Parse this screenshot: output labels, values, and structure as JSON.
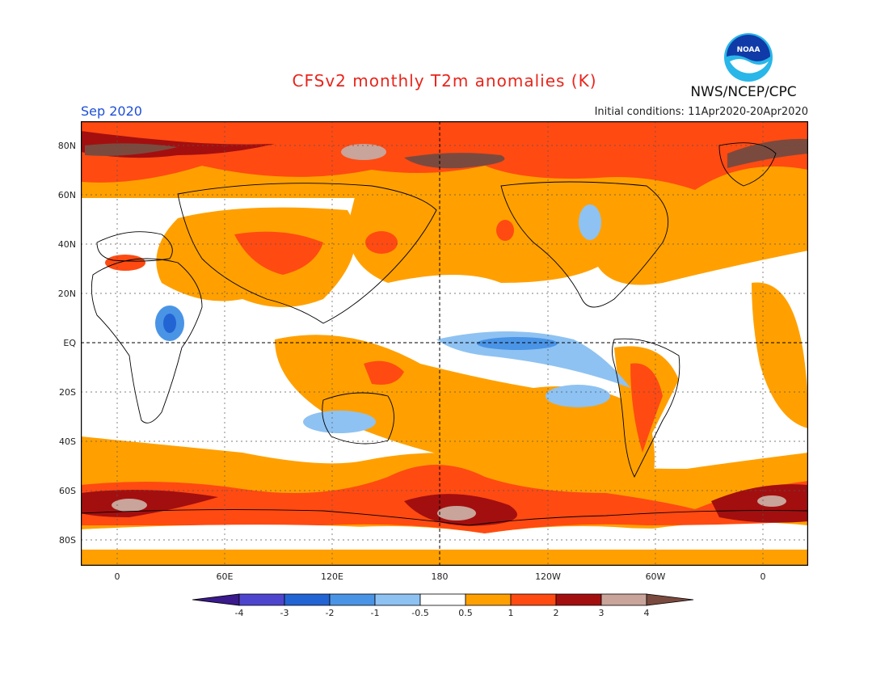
{
  "title": "CFSv2 monthly T2m anomalies (K)",
  "valid_month": "Sep 2020",
  "initial_conditions": "Initial conditions: 11Apr2020-20Apr2020",
  "agency": "NWS/NCEP/CPC",
  "logo_text": "NOAA",
  "colors": {
    "title": "#e8251c",
    "month": "#1d4fd6",
    "land_outline": "#000000"
  },
  "map": {
    "lat_ticks": [
      "80N",
      "60N",
      "40N",
      "20N",
      "EQ",
      "20S",
      "40S",
      "60S",
      "80S"
    ],
    "lon_ticks": [
      "0",
      "60E",
      "120E",
      "180",
      "120W",
      "60W",
      "0"
    ]
  },
  "legend": {
    "bins": [
      {
        "color": "#3a1a8c"
      },
      {
        "color": "#4e45cf"
      },
      {
        "color": "#2364d4"
      },
      {
        "color": "#4a94e6"
      },
      {
        "color": "#8ec2f2"
      },
      {
        "color": "#ffffff"
      },
      {
        "color": "#ffa000"
      },
      {
        "color": "#ff4a12"
      },
      {
        "color": "#a30f0f"
      },
      {
        "color": "#c8a49a"
      },
      {
        "color": "#7b4a3e"
      }
    ],
    "labels": [
      "-4",
      "-3",
      "-2",
      "-1",
      "-0.5",
      "0.5",
      "1",
      "2",
      "3",
      "4"
    ]
  }
}
